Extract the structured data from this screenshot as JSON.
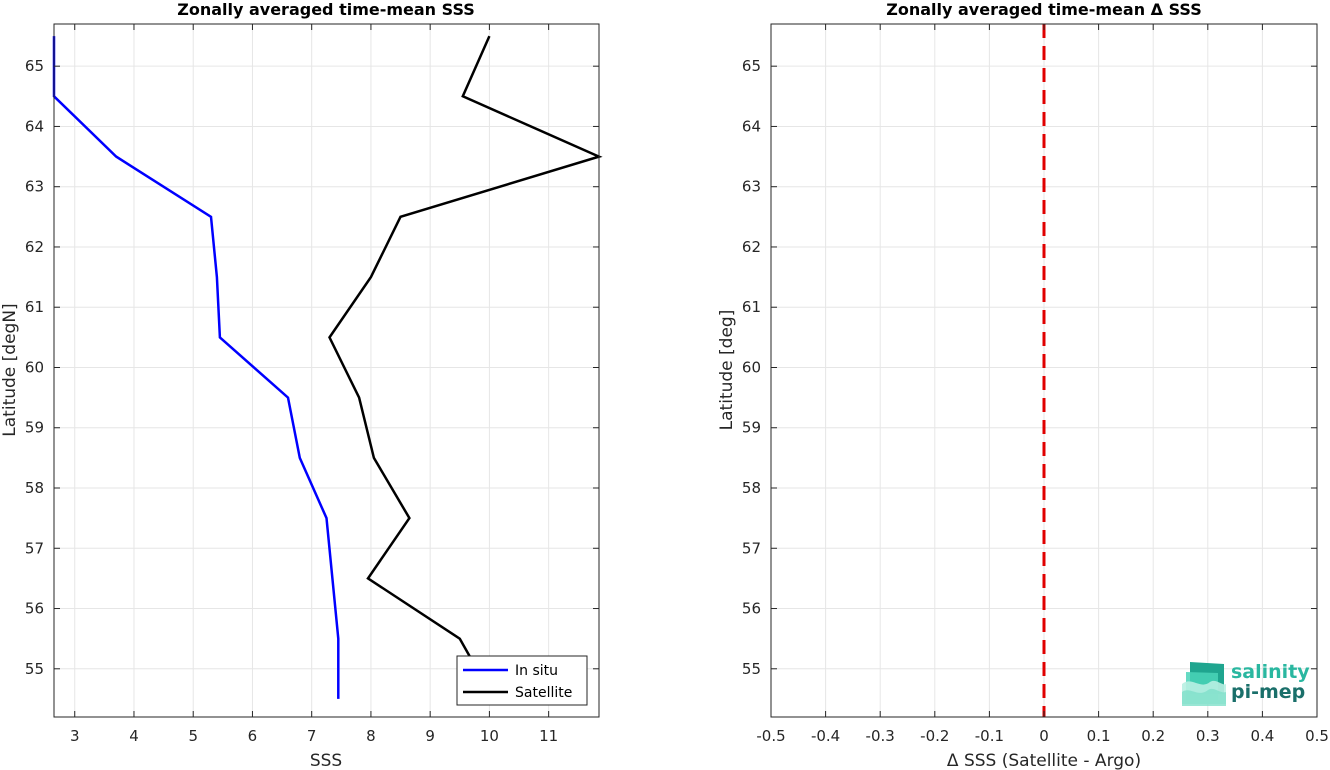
{
  "chart_data": [
    {
      "type": "line",
      "title": "Zonally averaged time-mean SSS",
      "xlabel": "SSS",
      "ylabel": "Latitude [degN]",
      "xlim": [
        2.65,
        11.85
      ],
      "ylim": [
        54.2,
        65.7
      ],
      "xticks": [
        3,
        4,
        5,
        6,
        7,
        8,
        9,
        10,
        11
      ],
      "yticks": [
        55,
        56,
        57,
        58,
        59,
        60,
        61,
        62,
        63,
        64,
        65
      ],
      "grid": true,
      "legend_location": "bottom-right",
      "series": [
        {
          "name": "In situ",
          "color": "#0000ff",
          "points": [
            {
              "sss": 7.45,
              "lat": 54.5
            },
            {
              "sss": 7.45,
              "lat": 55.5
            },
            {
              "sss": 7.35,
              "lat": 56.5
            },
            {
              "sss": 7.25,
              "lat": 57.5
            },
            {
              "sss": 6.8,
              "lat": 58.5
            },
            {
              "sss": 6.6,
              "lat": 59.5
            },
            {
              "sss": 5.45,
              "lat": 60.5
            },
            {
              "sss": 5.4,
              "lat": 61.5
            },
            {
              "sss": 5.3,
              "lat": 62.5
            },
            {
              "sss": 3.7,
              "lat": 63.5
            },
            {
              "sss": 2.65,
              "lat": 64.5
            },
            {
              "sss": 2.65,
              "lat": 65.5
            }
          ]
        },
        {
          "name": "Satellite",
          "color": "#000000",
          "points": [
            {
              "sss": 9.9,
              "lat": 54.8
            },
            {
              "sss": 9.5,
              "lat": 55.5
            },
            {
              "sss": 7.95,
              "lat": 56.5
            },
            {
              "sss": 8.65,
              "lat": 57.5
            },
            {
              "sss": 8.05,
              "lat": 58.5
            },
            {
              "sss": 7.8,
              "lat": 59.5
            },
            {
              "sss": 7.3,
              "lat": 60.5
            },
            {
              "sss": 8.0,
              "lat": 61.5
            },
            {
              "sss": 8.5,
              "lat": 62.5
            },
            {
              "sss": 11.85,
              "lat": 63.5
            },
            {
              "sss": 9.55,
              "lat": 64.5
            },
            {
              "sss": 10.0,
              "lat": 65.5
            }
          ]
        }
      ]
    },
    {
      "type": "line",
      "title": "Zonally averaged time-mean Δ SSS",
      "xlabel": "Δ SSS (Satellite - Argo)",
      "ylabel": "Latitude [deg]",
      "xlim": [
        -0.5,
        0.5
      ],
      "ylim": [
        54.2,
        65.7
      ],
      "xticks": [
        -0.5,
        -0.4,
        -0.3,
        -0.2,
        -0.1,
        0,
        0.1,
        0.2,
        0.3,
        0.4,
        0.5
      ],
      "yticks": [
        55,
        56,
        57,
        58,
        59,
        60,
        61,
        62,
        63,
        64,
        65
      ],
      "grid": true,
      "reference_line": {
        "x": 0,
        "color": "#e00000",
        "style": "dashed"
      },
      "series": []
    }
  ],
  "logo": {
    "line1": "salinity",
    "line2": "pi-mep",
    "colors": [
      "#2ab7a0",
      "#4ad4b8",
      "#1a6f6a"
    ]
  }
}
